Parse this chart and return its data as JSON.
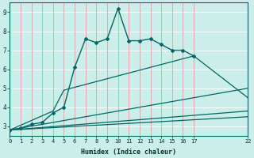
{
  "xlabel": "Humidex (Indice chaleur)",
  "background_color": "#cceee8",
  "grid_color_h": "#ffffff",
  "grid_color_v": "#ddaaaa",
  "line_color": "#006666",
  "xlim": [
    0,
    22
  ],
  "ylim": [
    2.5,
    9.5
  ],
  "xticks": [
    0,
    1,
    2,
    3,
    4,
    5,
    6,
    7,
    8,
    9,
    10,
    11,
    12,
    13,
    14,
    15,
    16,
    17,
    22
  ],
  "yticks": [
    3,
    4,
    5,
    6,
    7,
    8,
    9
  ],
  "series": [
    {
      "x": [
        0,
        1,
        2,
        3,
        4,
        5,
        6,
        7,
        8,
        9,
        10,
        11,
        12,
        13,
        14,
        15,
        16,
        17
      ],
      "y": [
        2.8,
        2.9,
        3.1,
        3.2,
        3.7,
        4.0,
        6.1,
        7.6,
        7.4,
        7.6,
        9.2,
        7.5,
        7.5,
        7.6,
        7.3,
        7.0,
        7.0,
        6.7
      ],
      "marker": "D",
      "markersize": 2.0,
      "linewidth": 1.0
    },
    {
      "x": [
        0,
        4,
        5,
        17,
        22
      ],
      "y": [
        2.8,
        3.8,
        4.9,
        6.7,
        4.5
      ],
      "marker": null,
      "markersize": 0,
      "linewidth": 0.9
    },
    {
      "x": [
        0,
        22
      ],
      "y": [
        2.8,
        5.0
      ],
      "marker": null,
      "markersize": 0,
      "linewidth": 0.9
    },
    {
      "x": [
        0,
        22
      ],
      "y": [
        2.8,
        3.8
      ],
      "marker": null,
      "markersize": 0,
      "linewidth": 0.9
    },
    {
      "x": [
        0,
        22
      ],
      "y": [
        2.8,
        3.5
      ],
      "marker": null,
      "markersize": 0,
      "linewidth": 0.9
    }
  ]
}
